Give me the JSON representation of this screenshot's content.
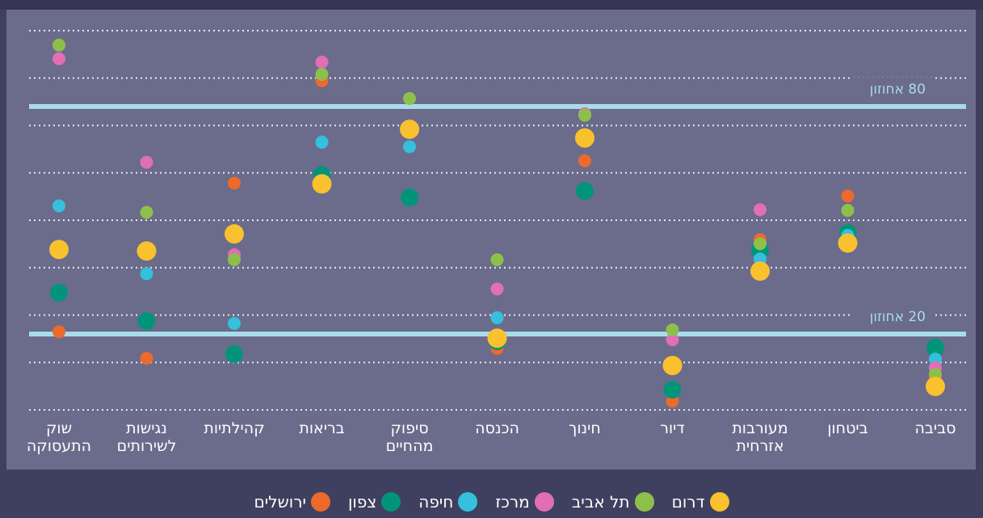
{
  "chart_data": {
    "type": "dot",
    "categories": [
      "סביבה",
      "ביטחון",
      "מעורבות אזרחית",
      "דיור",
      "חינוך",
      "הכנסה",
      "סיפוק מהחיים",
      "בריאות",
      "קהילתיות",
      "נגישות לשירותים",
      "שוק התעסוקה"
    ],
    "series": [
      {
        "name": "דרום",
        "color": "#f9c12e",
        "values": [
          6.2,
          44.0,
          36.6,
          11.7,
          71.7,
          18.9,
          74.0,
          59.6,
          46.4,
          41.9,
          42.3
        ]
      },
      {
        "name": "תל אביב",
        "color": "#8dc04a",
        "values": [
          9.4,
          52.6,
          43.8,
          21.1,
          77.7,
          39.6,
          82.1,
          88.5,
          39.6,
          52.1,
          96.2
        ]
      },
      {
        "name": "מרכז",
        "color": "#e06fb3",
        "values": [
          11.1,
          null,
          52.8,
          18.5,
          78.1,
          31.9,
          null,
          91.7,
          40.9,
          65.3,
          92.6
        ]
      },
      {
        "name": "חיפה",
        "color": "#35c0dd",
        "values": [
          13.4,
          46.0,
          39.8,
          null,
          null,
          24.3,
          69.4,
          70.6,
          22.8,
          35.9,
          53.8
        ]
      },
      {
        "name": "צפון",
        "color": "#00957a",
        "values": [
          16.4,
          46.6,
          42.1,
          5.3,
          57.7,
          18.1,
          56.0,
          61.9,
          14.7,
          23.4,
          30.9
        ]
      },
      {
        "name": "ירושלים",
        "color": "#ec6a2b",
        "values": [
          8.5,
          56.4,
          44.9,
          2.3,
          65.7,
          16.2,
          null,
          86.8,
          59.8,
          13.6,
          20.6
        ]
      }
    ],
    "reference_lines": [
      {
        "value": 80,
        "label": "80 אחוזון"
      },
      {
        "value": 20,
        "label": "20 אחוזון"
      }
    ],
    "ylim": [
      0,
      100
    ],
    "yticks": [
      0,
      12.5,
      25,
      37.5,
      50,
      62.5,
      75,
      87.5,
      100
    ],
    "grid": true
  }
}
